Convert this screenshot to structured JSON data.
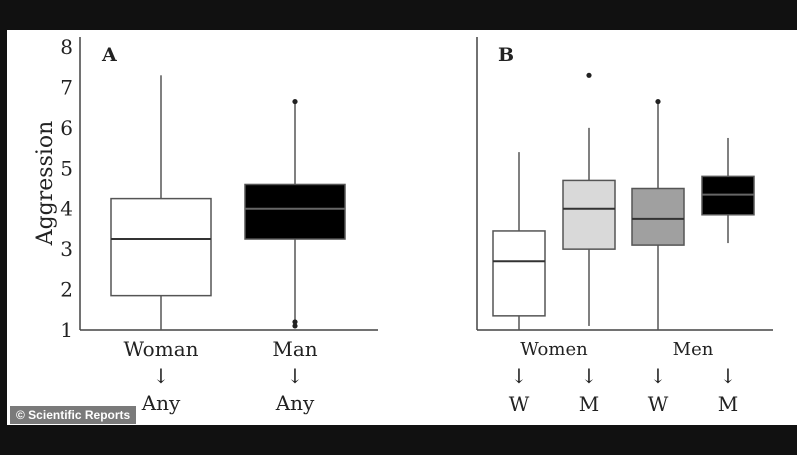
{
  "credit": "© Scientific Reports",
  "chart_data": [
    {
      "type": "boxplot",
      "panel_label": "A",
      "ylabel": "Aggression",
      "ylim": [
        1,
        8
      ],
      "yticks": [
        1,
        2,
        3,
        4,
        5,
        6,
        7,
        8
      ],
      "categories": [
        {
          "label": "Woman",
          "arrow": "↓",
          "target": "Any",
          "color": "#ffffff",
          "min": 1.0,
          "q1": 1.85,
          "median": 3.25,
          "q3": 4.25,
          "max": 7.3,
          "outliers": []
        },
        {
          "label": "Man",
          "arrow": "↓",
          "target": "Any",
          "color": "#000000",
          "min": 1.2,
          "q1": 3.25,
          "median": 4.0,
          "q3": 4.6,
          "max": 6.65,
          "outliers": [
            6.65,
            1.2,
            1.1
          ]
        }
      ]
    },
    {
      "type": "boxplot",
      "panel_label": "B",
      "ylim": [
        1,
        8
      ],
      "groups": [
        "Women",
        "Men"
      ],
      "categories": [
        {
          "group": "Women",
          "arrow": "↓",
          "target": "W",
          "color": "#ffffff",
          "min": 1.0,
          "q1": 1.35,
          "median": 2.7,
          "q3": 3.45,
          "max": 5.4,
          "outliers": []
        },
        {
          "group": "Women",
          "arrow": "↓",
          "target": "M",
          "color": "#d9d9d9",
          "min": 1.1,
          "q1": 3.0,
          "median": 4.0,
          "q3": 4.7,
          "max": 6.0,
          "outliers": [
            7.3
          ]
        },
        {
          "group": "Men",
          "arrow": "↓",
          "target": "W",
          "color": "#a0a0a0",
          "min": 1.0,
          "q1": 3.1,
          "median": 3.75,
          "q3": 4.5,
          "max": 6.65,
          "outliers": [
            6.65
          ]
        },
        {
          "group": "Men",
          "arrow": "↓",
          "target": "M",
          "color": "#000000",
          "min": 3.15,
          "q1": 3.85,
          "median": 4.35,
          "q3": 4.8,
          "max": 5.75,
          "outliers": []
        }
      ]
    }
  ]
}
